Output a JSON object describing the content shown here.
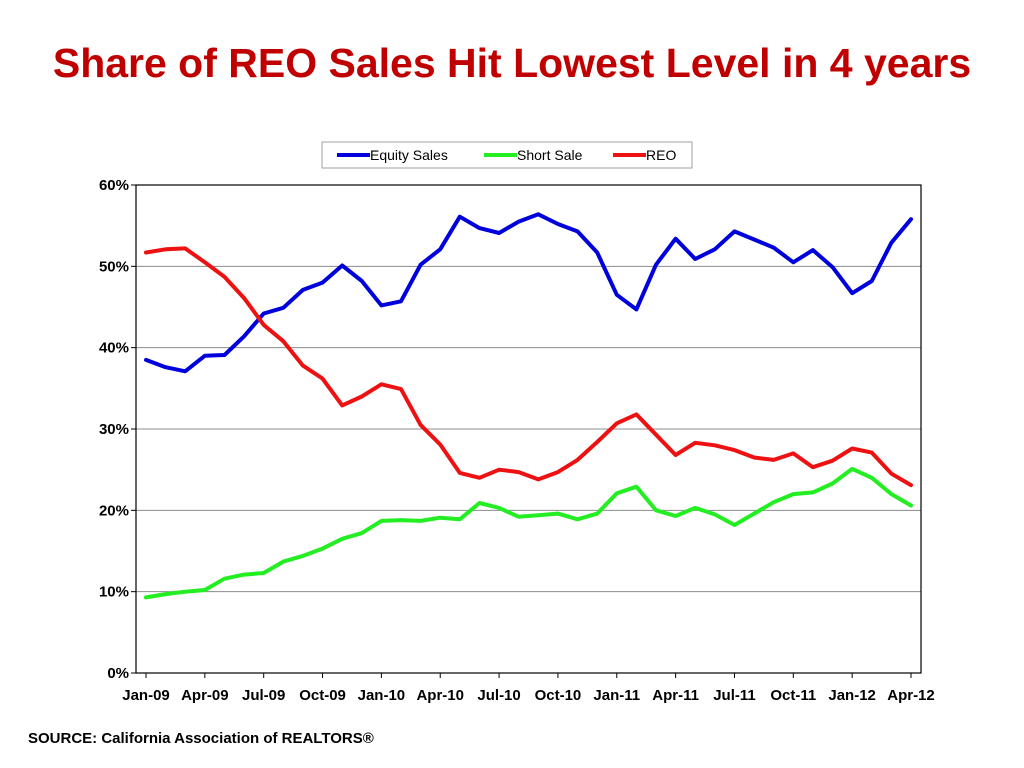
{
  "title": "Share of REO Sales Hit Lowest Level in 4 years",
  "source": "SOURCE: California Association of REALTORS®",
  "chart_data": {
    "type": "line",
    "title": "Share of REO Sales Hit Lowest Level in 4 years",
    "xlabel": "",
    "ylabel": "",
    "ylim": [
      0,
      0.6
    ],
    "y_format": "percent",
    "yticks": [
      0,
      0.1,
      0.2,
      0.3,
      0.4,
      0.5,
      0.6
    ],
    "ytick_labels": [
      "0%",
      "10%",
      "20%",
      "30%",
      "40%",
      "50%",
      "60%"
    ],
    "grid": true,
    "legend": "top-center",
    "x": [
      "Jan-09",
      "Feb-09",
      "Mar-09",
      "Apr-09",
      "May-09",
      "Jun-09",
      "Jul-09",
      "Aug-09",
      "Sep-09",
      "Oct-09",
      "Nov-09",
      "Dec-09",
      "Jan-10",
      "Feb-10",
      "Mar-10",
      "Apr-10",
      "May-10",
      "Jun-10",
      "Jul-10",
      "Aug-10",
      "Sep-10",
      "Oct-10",
      "Nov-10",
      "Dec-10",
      "Jan-11",
      "Feb-11",
      "Mar-11",
      "Apr-11",
      "May-11",
      "Jun-11",
      "Jul-11",
      "Aug-11",
      "Sep-11",
      "Oct-11",
      "Nov-11",
      "Dec-11",
      "Jan-12",
      "Feb-12",
      "Mar-12",
      "Apr-12"
    ],
    "xtick_labels": [
      "Jan-09",
      "Apr-09",
      "Jul-09",
      "Oct-09",
      "Jan-10",
      "Apr-10",
      "Jul-10",
      "Oct-10",
      "Jan-11",
      "Apr-11",
      "Jul-11",
      "Oct-11",
      "Jan-12",
      "Apr-12"
    ],
    "series": [
      {
        "name": "Equity Sales",
        "color": "#0000dd",
        "values": [
          0.385,
          0.376,
          0.371,
          0.39,
          0.391,
          0.414,
          0.442,
          0.449,
          0.471,
          0.48,
          0.501,
          0.482,
          0.452,
          0.457,
          0.502,
          0.521,
          0.561,
          0.547,
          0.541,
          0.555,
          0.564,
          0.552,
          0.543,
          0.517,
          0.465,
          0.447,
          0.502,
          0.534,
          0.509,
          0.521,
          0.543,
          0.533,
          0.523,
          0.505,
          0.52,
          0.499,
          0.467,
          0.482,
          0.529,
          0.558
        ]
      },
      {
        "name": "Short Sale",
        "color": "#22ee22",
        "values": [
          0.093,
          0.097,
          0.1,
          0.102,
          0.116,
          0.121,
          0.123,
          0.137,
          0.144,
          0.153,
          0.165,
          0.172,
          0.187,
          0.188,
          0.187,
          0.191,
          0.189,
          0.209,
          0.203,
          0.192,
          0.194,
          0.196,
          0.189,
          0.196,
          0.221,
          0.229,
          0.2,
          0.193,
          0.203,
          0.195,
          0.182,
          0.196,
          0.21,
          0.22,
          0.222,
          0.233,
          0.251,
          0.24,
          0.22,
          0.206
        ]
      },
      {
        "name": "REO",
        "color": "#ee1111",
        "values": [
          0.517,
          0.521,
          0.522,
          0.505,
          0.487,
          0.461,
          0.428,
          0.408,
          0.378,
          0.362,
          0.329,
          0.34,
          0.355,
          0.349,
          0.305,
          0.281,
          0.246,
          0.24,
          0.25,
          0.247,
          0.238,
          0.247,
          0.262,
          0.284,
          0.307,
          0.318,
          0.293,
          0.268,
          0.283,
          0.28,
          0.274,
          0.265,
          0.262,
          0.27,
          0.253,
          0.261,
          0.276,
          0.271,
          0.245,
          0.231
        ]
      }
    ]
  }
}
